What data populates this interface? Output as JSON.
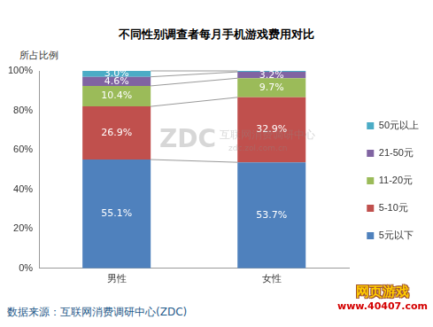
{
  "chart_data": {
    "type": "bar",
    "title": "不同性别调查者每月手机游戏费用对比",
    "y_label": "所占比例",
    "categories": [
      "男性",
      "女性"
    ],
    "series": [
      {
        "name": "5元以下",
        "color": "#4f81bd",
        "values": [
          55.1,
          53.7
        ],
        "value_labels": [
          "55.1%",
          "53.7%"
        ]
      },
      {
        "name": "5-10元",
        "color": "#c0504d",
        "values": [
          26.9,
          32.9
        ],
        "value_labels": [
          "26.9%",
          "32.9%"
        ]
      },
      {
        "name": "11-20元",
        "color": "#9bbb59",
        "values": [
          10.4,
          9.7
        ],
        "value_labels": [
          "10.4%",
          "9.7%"
        ]
      },
      {
        "name": "21-50元",
        "color": "#8064a2",
        "values": [
          4.6,
          3.2
        ],
        "value_labels": [
          "4.6%",
          "3.2%"
        ]
      },
      {
        "name": "50元以上",
        "color": "#4bacc6",
        "values": [
          3.0,
          0.5
        ],
        "value_labels": [
          "3.0%",
          null
        ]
      }
    ],
    "ylim": [
      0,
      100
    ],
    "yticks": [
      {
        "value": 0,
        "label": "0%"
      },
      {
        "value": 20,
        "label": "20%"
      },
      {
        "value": 40,
        "label": "40%"
      },
      {
        "value": 60,
        "label": "60%"
      },
      {
        "value": 80,
        "label": "80%"
      },
      {
        "value": 100,
        "label": "100%"
      }
    ],
    "stacked": true,
    "data_labels": true,
    "legend": "right",
    "grid": false,
    "watermark": [
      "ZDC",
      "互联网消费调研中心",
      "zdc.zol.com.cn"
    ],
    "source": "数据来源：互联网消费调研中心(ZDC)",
    "logo": [
      "网页游戏",
      "www.40407.com"
    ]
  }
}
